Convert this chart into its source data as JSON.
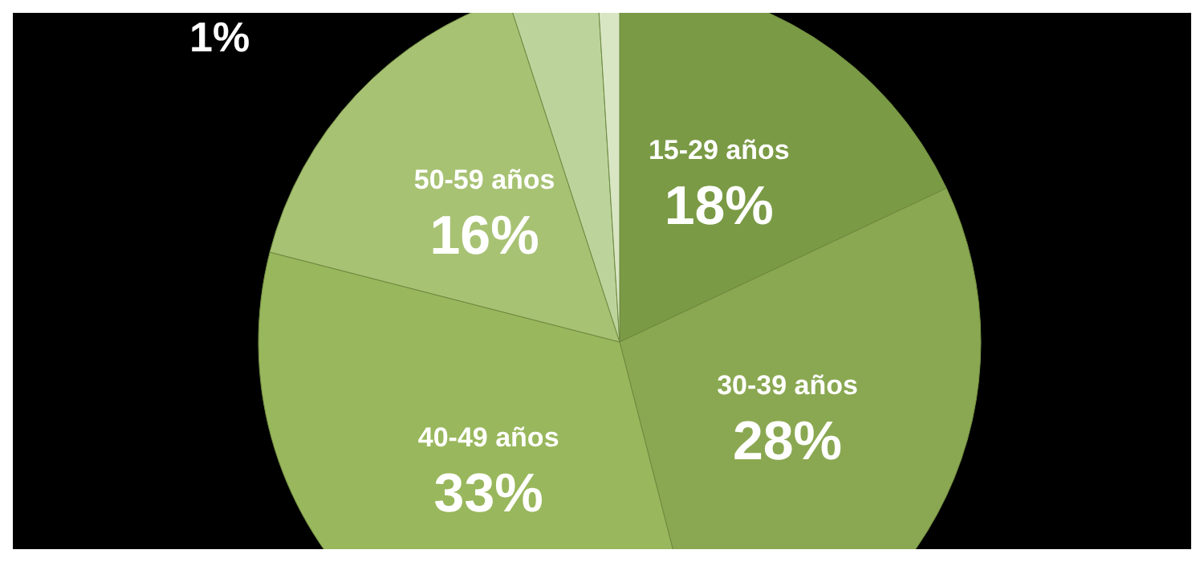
{
  "chart_data": {
    "type": "pie",
    "categories": [
      "15-29 años",
      "30-39 años",
      "40-49 años",
      "50-59 años",
      null,
      null
    ],
    "values": [
      18,
      28,
      33,
      16,
      4,
      1
    ],
    "colors": [
      "#7a9a45",
      "#8aa851",
      "#99b75c",
      "#a8c274",
      "#bcd49c",
      "#d8e6c4"
    ],
    "value_labels": [
      "18%",
      "28%",
      "33%",
      "16%",
      null,
      null
    ],
    "annotations": [
      "1%"
    ],
    "legend": false
  }
}
